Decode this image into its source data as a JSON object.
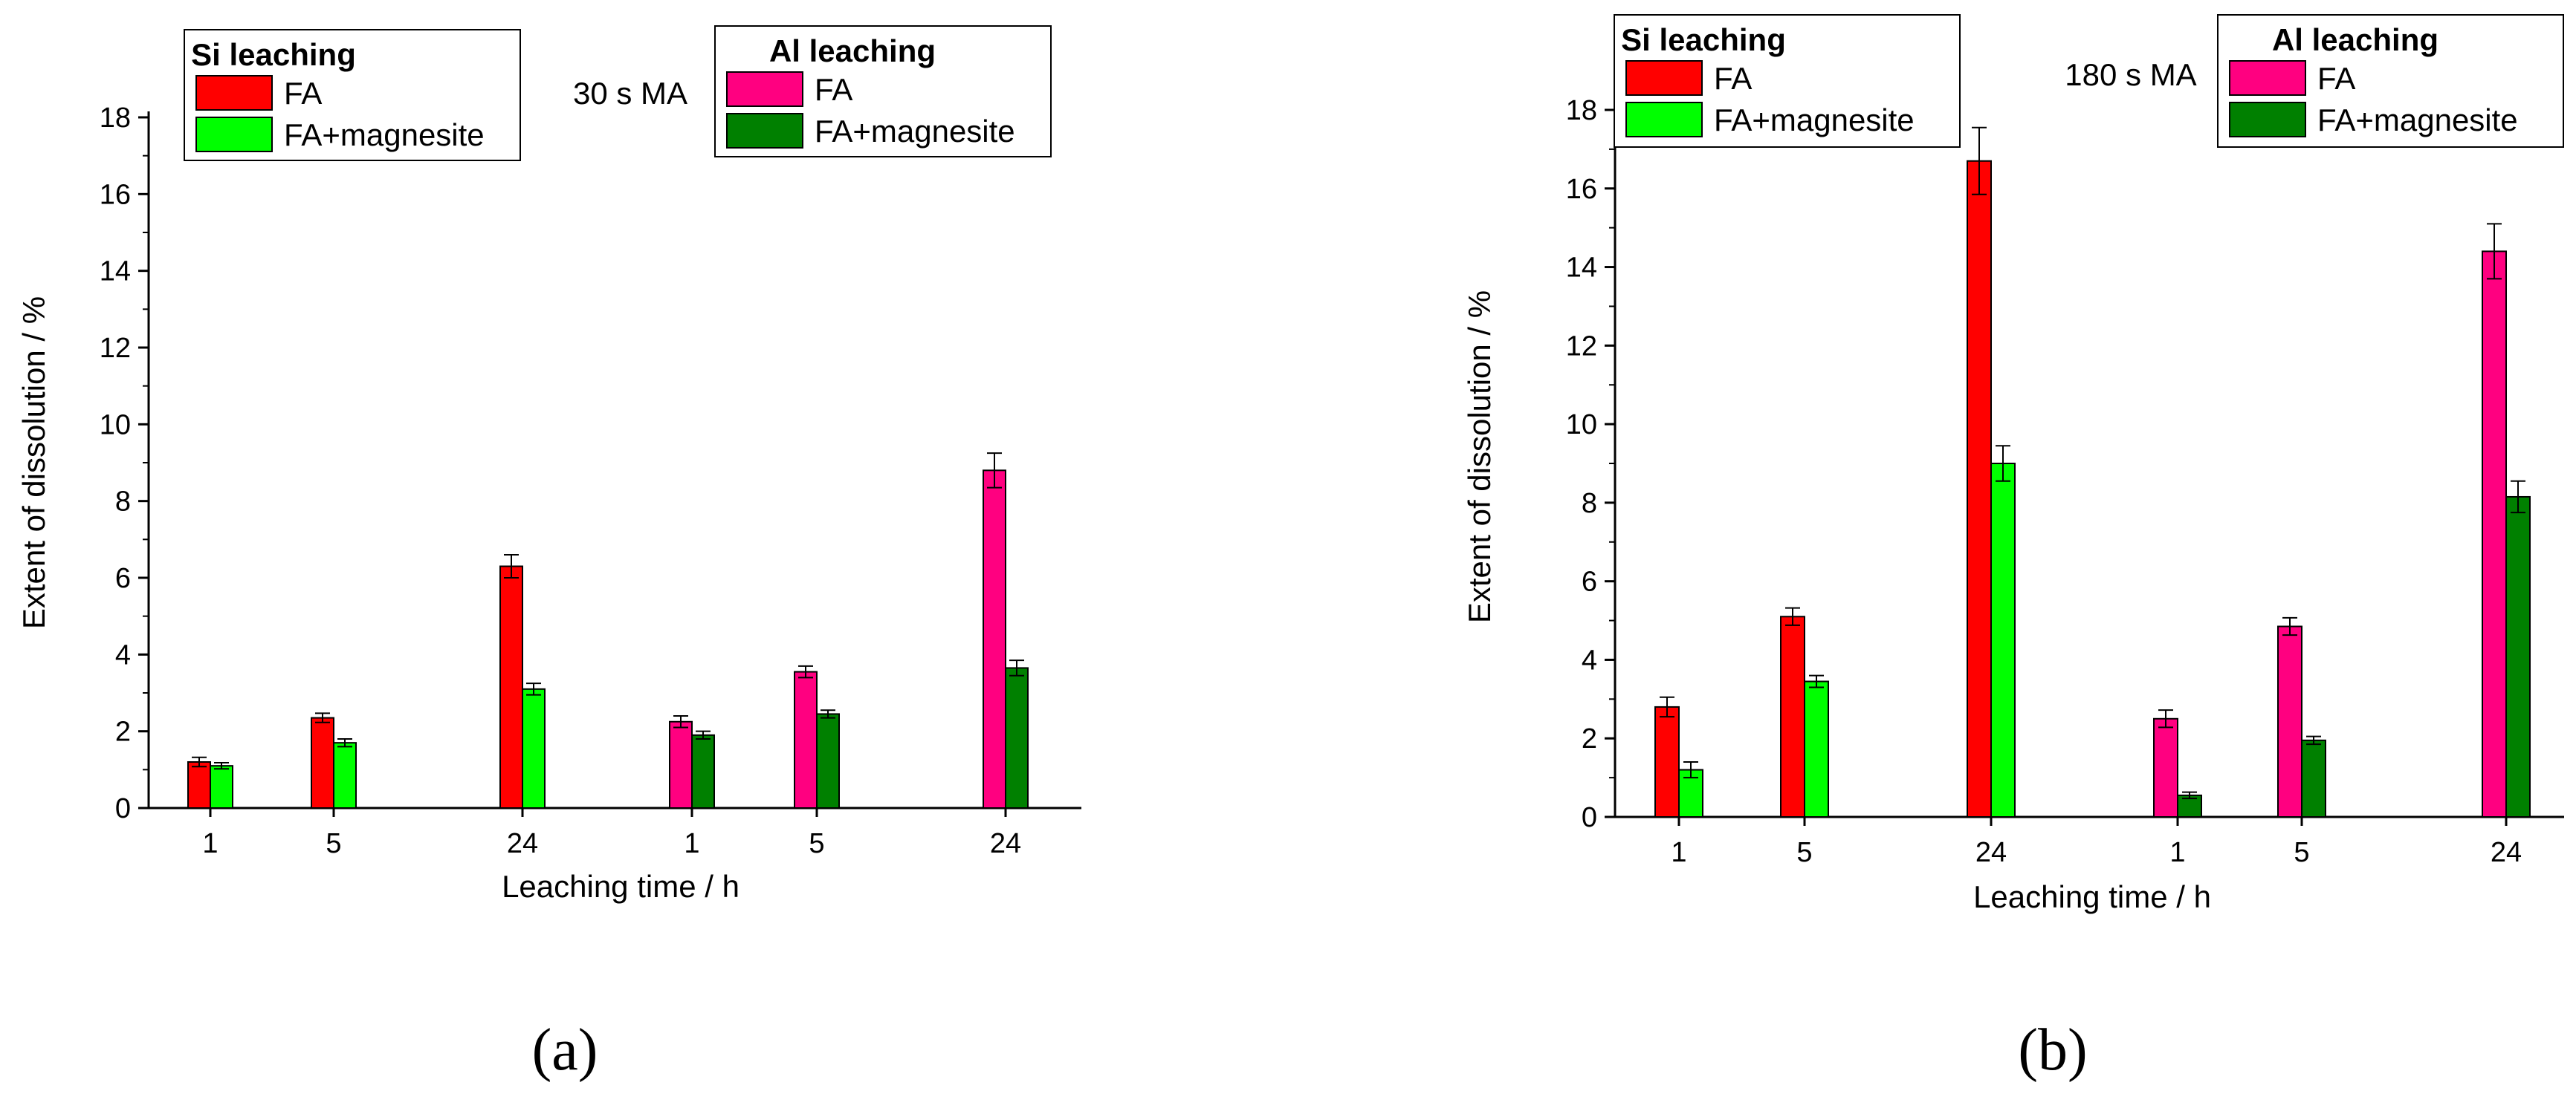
{
  "chart_data": [
    {
      "type": "bar",
      "panel_label": "(a)",
      "annotation": "30 s MA",
      "xlabel": "Leaching time / h",
      "ylabel": "Extent of dissolution / %",
      "ylim": [
        0,
        18
      ],
      "yticks": [
        0,
        2,
        4,
        6,
        8,
        10,
        12,
        14,
        16,
        18
      ],
      "categories": [
        "1",
        "5",
        "24",
        "1",
        "5",
        "24"
      ],
      "legends": [
        {
          "title": "Si leaching",
          "entries": [
            {
              "label": "FA",
              "color": "#ff0000"
            },
            {
              "label": "FA+magnesite",
              "color": "#00ff00"
            }
          ]
        },
        {
          "title": "Al leaching",
          "entries": [
            {
              "label": "FA",
              "color": "#ff0080"
            },
            {
              "label": "FA+magnesite",
              "color": "#008000"
            }
          ]
        }
      ],
      "series": [
        {
          "name": "Si leaching FA",
          "color": "#ff0000",
          "values": [
            1.2,
            2.35,
            6.3,
            null,
            null,
            null
          ],
          "errors": [
            0.12,
            0.12,
            0.3,
            null,
            null,
            null
          ]
        },
        {
          "name": "Si leaching FA+magnesite",
          "color": "#00ff00",
          "values": [
            1.1,
            1.7,
            3.1,
            null,
            null,
            null
          ],
          "errors": [
            0.08,
            0.1,
            0.15,
            null,
            null,
            null
          ]
        },
        {
          "name": "Al leaching FA",
          "color": "#ff0080",
          "values": [
            null,
            null,
            null,
            2.25,
            3.55,
            8.8
          ],
          "errors": [
            null,
            null,
            null,
            0.15,
            0.15,
            0.45
          ]
        },
        {
          "name": "Al leaching FA+magnesite",
          "color": "#008000",
          "values": [
            null,
            null,
            null,
            1.9,
            2.45,
            3.65
          ],
          "errors": [
            null,
            null,
            null,
            0.1,
            0.1,
            0.2
          ]
        }
      ]
    },
    {
      "type": "bar",
      "panel_label": "(b)",
      "annotation": "180 s MA",
      "xlabel": "Leaching time / h",
      "ylabel": "Extent of dissolution / %",
      "ylim": [
        0,
        18
      ],
      "yticks": [
        0,
        2,
        4,
        6,
        8,
        10,
        12,
        14,
        16,
        18
      ],
      "categories": [
        "1",
        "5",
        "24",
        "1",
        "5",
        "24"
      ],
      "legends": [
        {
          "title": "Si leaching",
          "entries": [
            {
              "label": "FA",
              "color": "#ff0000"
            },
            {
              "label": "FA+magnesite",
              "color": "#00ff00"
            }
          ]
        },
        {
          "title": "Al leaching",
          "entries": [
            {
              "label": "FA",
              "color": "#ff0080"
            },
            {
              "label": "FA+magnesite",
              "color": "#008000"
            }
          ]
        }
      ],
      "series": [
        {
          "name": "Si leaching FA",
          "color": "#ff0000",
          "values": [
            2.8,
            5.1,
            16.7,
            null,
            null,
            null
          ],
          "errors": [
            0.25,
            0.22,
            0.85,
            null,
            null,
            null
          ]
        },
        {
          "name": "Si leaching FA+magnesite",
          "color": "#00ff00",
          "values": [
            1.2,
            3.45,
            9.0,
            null,
            null,
            null
          ],
          "errors": [
            0.2,
            0.15,
            0.45,
            null,
            null,
            null
          ]
        },
        {
          "name": "Al leaching FA",
          "color": "#ff0080",
          "values": [
            null,
            null,
            null,
            2.5,
            4.85,
            14.4
          ],
          "errors": [
            null,
            null,
            null,
            0.22,
            0.22,
            0.7
          ]
        },
        {
          "name": "Al leaching FA+magnesite",
          "color": "#008000",
          "values": [
            null,
            null,
            null,
            0.55,
            1.95,
            8.15
          ],
          "errors": [
            null,
            null,
            null,
            0.08,
            0.1,
            0.4
          ]
        }
      ]
    }
  ]
}
